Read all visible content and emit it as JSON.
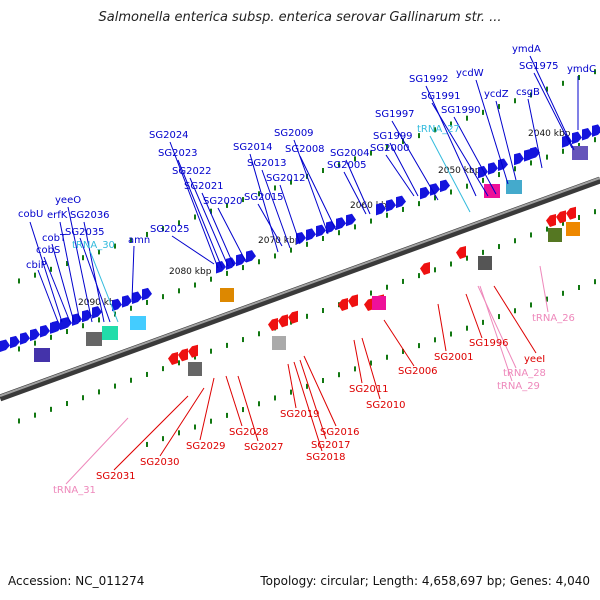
{
  "title": "Salmonella enterica subsp. enterica serovar Gallinarum str. ...",
  "accession": "Accession: NC_011274",
  "topology": "Topology: circular; Length: 4,658,697 bp; Genes: 4,040",
  "colors": {
    "forward_label": "#0000cc",
    "reverse_label": "#dd0000",
    "trna_forward": "#33bbdd",
    "trna_reverse": "#ee88bb",
    "backbone": "#808080",
    "tick": "#117711"
  },
  "scale_ticks": [
    "2040 kbp",
    "2050 kbp",
    "2060 kbp",
    "2070 kbp",
    "2080 kbp",
    "2090 kbp"
  ],
  "top_labels": [
    "cbiP",
    "cobS",
    "cobT",
    "cobU",
    "erfK",
    "yeeO",
    "SG2036",
    "SG2035",
    "tRNA_30",
    "amn",
    "SG2025",
    "SG2024",
    "SG2023",
    "SG2022",
    "SG2021",
    "SG2020",
    "SG2015",
    "SG2014",
    "SG2013",
    "SG2012",
    "SG2009",
    "SG2008",
    "SG2005",
    "SG2004",
    "SG2000",
    "SG1999",
    "SG1997",
    "tRNA_27",
    "SG1992",
    "SG1991",
    "SG1990",
    "ycdW",
    "ycdZ",
    "csgB",
    "SG1975",
    "ymdA",
    "ymdC"
  ],
  "bottom_labels": [
    "tRNA_31",
    "SG2031",
    "SG2030",
    "SG2029",
    "SG2028",
    "SG2027",
    "SG2019",
    "SG2018",
    "SG2017",
    "SG2016",
    "SG2011",
    "SG2010",
    "SG2006",
    "SG2001",
    "SG1996",
    "yeeI",
    "tRNA_28",
    "tRNA_29",
    "tRNA_26"
  ]
}
